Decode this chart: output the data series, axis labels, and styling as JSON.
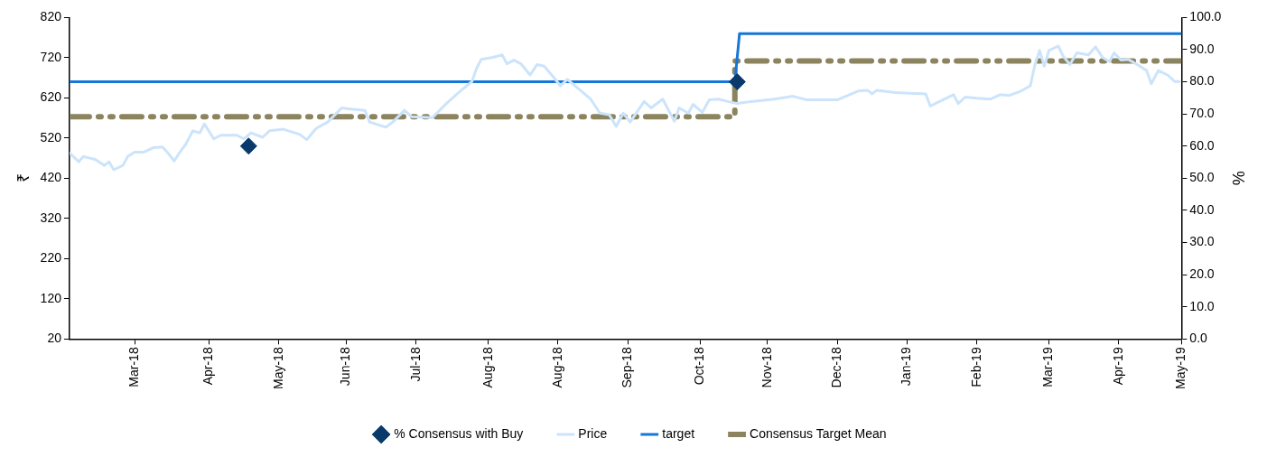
{
  "chart_data": {
    "type": "line",
    "ylabel": "₹",
    "y2label": "%",
    "xlim": [
      "2018-02-02",
      "2019-05-26"
    ],
    "xticks": [
      {
        "value": "2018-03-02",
        "label": "Mar-18"
      },
      {
        "value": "2018-04-03",
        "label": "Apr-18"
      },
      {
        "value": "2018-05-03",
        "label": "May-18"
      },
      {
        "value": "2018-06-01",
        "label": "Jun-18"
      },
      {
        "value": "2018-07-01",
        "label": "Jul-18"
      },
      {
        "value": "2018-08-01",
        "label": "Aug-18"
      },
      {
        "value": "2018-08-31",
        "label": "Aug-18"
      },
      {
        "value": "2018-09-30",
        "label": "Sep-18"
      },
      {
        "value": "2018-10-31",
        "label": "Oct-18"
      },
      {
        "value": "2018-11-29",
        "label": "Nov-18"
      },
      {
        "value": "2018-12-29",
        "label": "Dec-18"
      },
      {
        "value": "2019-01-28",
        "label": "Jan-19"
      },
      {
        "value": "2019-02-27",
        "label": "Feb-19"
      },
      {
        "value": "2019-03-30",
        "label": "Mar-19"
      },
      {
        "value": "2019-04-29",
        "label": "Apr-19"
      },
      {
        "value": "2019-05-26",
        "label": "May-19"
      }
    ],
    "ylim": [
      20,
      820
    ],
    "yticks": [
      20,
      120,
      220,
      320,
      420,
      520,
      620,
      720,
      820
    ],
    "y2lim": [
      0,
      100
    ],
    "y2ticks": [
      {
        "value": 0,
        "label": "0.0"
      },
      {
        "value": 10,
        "label": "10.0"
      },
      {
        "value": 20,
        "label": "20.0"
      },
      {
        "value": 30,
        "label": "30.0"
      },
      {
        "value": 40,
        "label": "40.0"
      },
      {
        "value": 50,
        "label": "50.0"
      },
      {
        "value": 60,
        "label": "60.0"
      },
      {
        "value": 70,
        "label": "70.0"
      },
      {
        "value": 80,
        "label": "80.0"
      },
      {
        "value": 90,
        "label": "90.0"
      },
      {
        "value": 100,
        "label": "100.0"
      }
    ],
    "legend": "bottom",
    "series": [
      {
        "name": "Price",
        "color": "#cce4fb",
        "line_style": "solid",
        "x": [
          "2018-02-02",
          "2018-02-06",
          "2018-02-08",
          "2018-02-13",
          "2018-02-17",
          "2018-02-19",
          "2018-02-21",
          "2018-02-25",
          "2018-02-27",
          "2018-03-02",
          "2018-03-06",
          "2018-03-10",
          "2018-03-14",
          "2018-03-16",
          "2018-03-19",
          "2018-03-21",
          "2018-03-24",
          "2018-03-27",
          "2018-03-30",
          "2018-04-01",
          "2018-04-05",
          "2018-04-08",
          "2018-04-15",
          "2018-04-18",
          "2018-04-21",
          "2018-04-26",
          "2018-04-29",
          "2018-05-05",
          "2018-05-12",
          "2018-05-15",
          "2018-05-19",
          "2018-05-24",
          "2018-05-30",
          "2018-06-02",
          "2018-06-09",
          "2018-06-11",
          "2018-06-18",
          "2018-06-21",
          "2018-06-26",
          "2018-06-29",
          "2018-07-08",
          "2018-07-14",
          "2018-07-20",
          "2018-07-25",
          "2018-07-27",
          "2018-07-29",
          "2018-08-03",
          "2018-08-07",
          "2018-08-09",
          "2018-08-12",
          "2018-08-15",
          "2018-08-19",
          "2018-08-22",
          "2018-08-25",
          "2018-08-29",
          "2018-09-01",
          "2018-09-04",
          "2018-09-10",
          "2018-09-14",
          "2018-09-18",
          "2018-09-22",
          "2018-09-25",
          "2018-09-28",
          "2018-10-01",
          "2018-10-07",
          "2018-10-10",
          "2018-10-15",
          "2018-10-20",
          "2018-10-22",
          "2018-10-26",
          "2018-10-28",
          "2018-11-01",
          "2018-11-04",
          "2018-11-08",
          "2018-11-12",
          "2018-11-16",
          "2018-11-22",
          "2018-12-02",
          "2018-12-10",
          "2018-12-16",
          "2018-12-29",
          "2019-01-07",
          "2019-01-11",
          "2019-01-13",
          "2019-01-15",
          "2019-01-23",
          "2019-02-05",
          "2019-02-07",
          "2019-02-11",
          "2019-02-17",
          "2019-02-19",
          "2019-02-22",
          "2019-02-27",
          "2019-03-05",
          "2019-03-09",
          "2019-03-13",
          "2019-03-18",
          "2019-03-22",
          "2019-03-24",
          "2019-03-26",
          "2019-03-28",
          "2019-03-30",
          "2019-04-03",
          "2019-04-05",
          "2019-04-08",
          "2019-04-11",
          "2019-04-16",
          "2019-04-19",
          "2019-04-22",
          "2019-04-25",
          "2019-04-27",
          "2019-04-30",
          "2019-05-03",
          "2019-05-07",
          "2019-05-11",
          "2019-05-13",
          "2019-05-16",
          "2019-05-20",
          "2019-05-23",
          "2019-05-25"
        ],
        "values": [
          483,
          461,
          474,
          467,
          452,
          461,
          441,
          452,
          474,
          485,
          485,
          496,
          498,
          485,
          463,
          481,
          505,
          538,
          533,
          555,
          518,
          527,
          527,
          518,
          533,
          522,
          538,
          542,
          529,
          516,
          544,
          560,
          595,
          593,
          589,
          560,
          547,
          560,
          589,
          573,
          571,
          606,
          637,
          661,
          694,
          716,
          721,
          727,
          705,
          714,
          705,
          677,
          703,
          699,
          672,
          650,
          666,
          637,
          617,
          582,
          578,
          549,
          582,
          560,
          611,
          595,
          617,
          562,
          595,
          582,
          604,
          584,
          615,
          617,
          611,
          606,
          611,
          617,
          624,
          615,
          615,
          637,
          639,
          630,
          639,
          633,
          630,
          600,
          611,
          628,
          606,
          622,
          619,
          617,
          628,
          626,
          637,
          650,
          703,
          738,
          699,
          738,
          749,
          725,
          703,
          732,
          727,
          747,
          721,
          710,
          732,
          714,
          716,
          703,
          688,
          655,
          688,
          677,
          661,
          661
        ]
      },
      {
        "name": "target",
        "color": "#1777d8",
        "line_style": "solid",
        "x": [
          "2018-02-02",
          "2018-11-15",
          "2018-11-17",
          "2019-05-26"
        ],
        "values": [
          660,
          660,
          780,
          780
        ]
      },
      {
        "name": "Consensus Target Mean",
        "color": "#8b845e",
        "line_style": "dashed",
        "x": [
          "2018-02-02",
          "2018-11-15",
          "2018-11-15",
          "2019-05-26"
        ],
        "values": [
          573,
          573,
          712,
          712
        ]
      },
      {
        "name": "% Consensus with Buy",
        "type": "scatter",
        "axis": "y2",
        "color": "#0a3a6b",
        "marker": "diamond",
        "x": [
          "2018-04-20",
          "2018-11-16"
        ],
        "values": [
          60,
          80
        ]
      }
    ]
  }
}
